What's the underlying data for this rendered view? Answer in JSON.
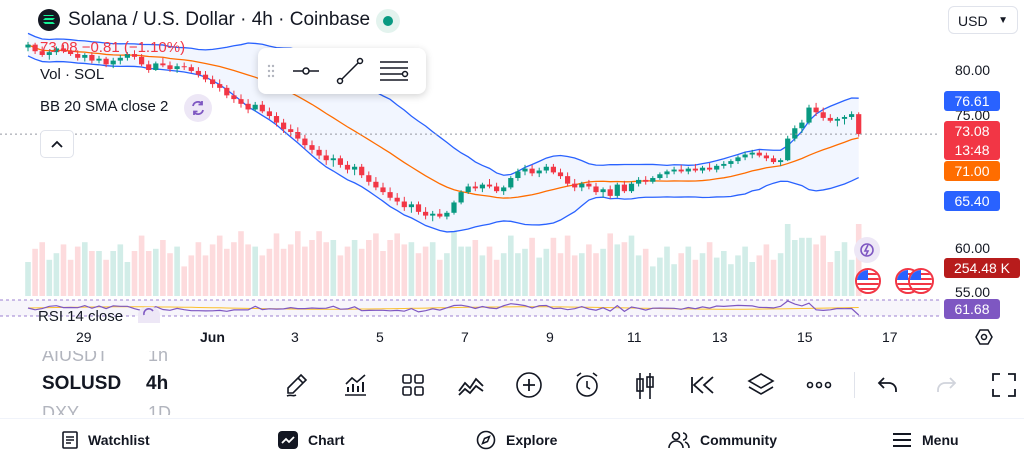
{
  "header": {
    "title": "Solana / U.S. Dollar · 4h · Coinbase",
    "currency": "USD",
    "price_change": "73.08  −0.81 (−1.10%)"
  },
  "indicators": {
    "volume": "Vol · SOL",
    "bollinger": "BB 20 SMA close 2",
    "rsi": "RSI 14 close"
  },
  "price_axis": {
    "ticks": [
      "80.00",
      "75.00",
      "60.00",
      "55.00"
    ],
    "tags": {
      "bb_upper": {
        "value": "76.61",
        "color": "#2962ff"
      },
      "last": {
        "value": "73.08",
        "color": "#f23645"
      },
      "countdown": {
        "value": "13:48",
        "color": "#f23645"
      },
      "bb_basis": {
        "value": "71.00",
        "color": "#ff6d00"
      },
      "bb_lower": {
        "value": "65.40",
        "color": "#2962ff"
      },
      "volume": {
        "value": "254.48 K",
        "color": "#b71c1c"
      },
      "rsi": {
        "value": "61.68",
        "color": "#7e57c2"
      }
    }
  },
  "time_axis": [
    "29",
    "Jun",
    "3",
    "5",
    "7",
    "9",
    "11",
    "13",
    "15",
    "17"
  ],
  "symbols": {
    "above": "AIUSDT",
    "above_interval": "1h",
    "current": "SOLUSD",
    "current_interval": "4h",
    "below": "DXY",
    "below_interval": "1D"
  },
  "toolbar_icons": [
    "pencil-icon",
    "indicators-icon",
    "templates-icon",
    "compare-icon",
    "add-icon",
    "alert-icon",
    "candle-style-icon",
    "replay-icon",
    "layers-icon",
    "more-icon",
    "undo-icon",
    "redo-icon",
    "fullscreen-icon"
  ],
  "nav": {
    "watchlist": "Watchlist",
    "chart": "Chart",
    "explore": "Explore",
    "community": "Community",
    "menu": "Menu"
  },
  "colors": {
    "up": "#089981",
    "down": "#f23645",
    "bb_band": "#2962ff",
    "bb_basis": "#ff6d00",
    "rsi": "#7e57c2"
  },
  "chart_data": {
    "type": "candlestick",
    "x": [
      "May 28 04:00",
      "May 28 08:00",
      "May 28 12:00",
      "May 28 16:00",
      "May 28 20:00",
      "May 29 00:00",
      "May 29 04:00",
      "May 29 08:00",
      "May 29 12:00",
      "May 29 16:00",
      "May 29 20:00",
      "May 30 00:00",
      "May 30 04:00",
      "May 30 08:00",
      "May 30 12:00",
      "May 30 16:00",
      "May 30 20:00",
      "May 31 00:00",
      "May 31 04:00",
      "May 31 08:00",
      "May 31 12:00",
      "May 31 16:00",
      "May 31 20:00",
      "Jun 1 00:00",
      "Jun 1 04:00",
      "Jun 1 08:00",
      "Jun 1 12:00",
      "Jun 1 16:00",
      "Jun 1 20:00",
      "Jun 2 00:00",
      "Jun 2 04:00",
      "Jun 2 08:00",
      "Jun 2 12:00",
      "Jun 2 16:00",
      "Jun 2 20:00",
      "Jun 3 00:00",
      "Jun 3 04:00",
      "Jun 3 08:00",
      "Jun 3 12:00",
      "Jun 3 16:00",
      "Jun 3 20:00",
      "Jun 4 00:00",
      "Jun 4 04:00",
      "Jun 4 08:00",
      "Jun 4 12:00",
      "Jun 4 16:00",
      "Jun 4 20:00",
      "Jun 5 00:00",
      "Jun 5 04:00",
      "Jun 5 08:00",
      "Jun 5 12:00",
      "Jun 5 16:00",
      "Jun 5 20:00",
      "Jun 6 00:00",
      "Jun 6 04:00",
      "Jun 6 08:00",
      "Jun 6 12:00",
      "Jun 6 16:00",
      "Jun 6 20:00",
      "Jun 7 00:00",
      "Jun 7 04:00",
      "Jun 7 08:00",
      "Jun 7 12:00",
      "Jun 7 16:00",
      "Jun 7 20:00",
      "Jun 8 00:00",
      "Jun 8 04:00",
      "Jun 8 08:00",
      "Jun 8 12:00",
      "Jun 8 16:00",
      "Jun 8 20:00",
      "Jun 9 00:00",
      "Jun 9 04:00",
      "Jun 9 08:00",
      "Jun 9 12:00",
      "Jun 9 16:00",
      "Jun 9 20:00",
      "Jun 10 00:00",
      "Jun 10 04:00",
      "Jun 10 08:00",
      "Jun 10 12:00",
      "Jun 10 16:00",
      "Jun 10 20:00",
      "Jun 11 00:00",
      "Jun 11 04:00",
      "Jun 11 08:00",
      "Jun 11 12:00",
      "Jun 11 16:00",
      "Jun 11 20:00",
      "Jun 12 00:00",
      "Jun 12 04:00",
      "Jun 12 08:00",
      "Jun 12 12:00",
      "Jun 12 16:00",
      "Jun 12 20:00",
      "Jun 13 00:00",
      "Jun 13 04:00",
      "Jun 13 08:00",
      "Jun 13 12:00",
      "Jun 13 16:00",
      "Jun 13 20:00",
      "Jun 14 00:00",
      "Jun 14 04:00",
      "Jun 14 08:00",
      "Jun 14 12:00",
      "Jun 14 16:00",
      "Jun 14 20:00",
      "Jun 15 00:00",
      "Jun 15 04:00",
      "Jun 15 08:00",
      "Jun 15 12:00",
      "Jun 15 16:00",
      "Jun 15 20:00",
      "Jun 16 00:00",
      "Jun 16 04:00",
      "Jun 16 08:00",
      "Jun 16 12:00",
      "Jun 16 16:00",
      "Jun 16 20:00",
      "Jun 17 00:00"
    ],
    "ohlc": [
      [
        82.3,
        82.9,
        81.9,
        82.6
      ],
      [
        82.6,
        82.8,
        81.6,
        81.9
      ],
      [
        81.9,
        82.4,
        81.3,
        81.5
      ],
      [
        81.5,
        82.0,
        81.0,
        81.8
      ],
      [
        81.8,
        82.4,
        81.5,
        82.2
      ],
      [
        82.2,
        82.6,
        81.7,
        81.9
      ],
      [
        81.9,
        82.3,
        81.4,
        81.6
      ],
      [
        81.6,
        82.0,
        80.9,
        81.2
      ],
      [
        81.2,
        81.7,
        80.8,
        81.5
      ],
      [
        81.5,
        81.8,
        80.6,
        80.9
      ],
      [
        80.9,
        81.4,
        80.6,
        81.1
      ],
      [
        81.1,
        81.3,
        80.2,
        80.5
      ],
      [
        80.5,
        81.2,
        80.1,
        80.9
      ],
      [
        80.9,
        81.5,
        80.5,
        81.2
      ],
      [
        81.2,
        81.8,
        80.9,
        81.6
      ],
      [
        81.6,
        82.0,
        81.0,
        81.3
      ],
      [
        81.3,
        81.6,
        80.3,
        80.5
      ],
      [
        80.5,
        80.9,
        79.6,
        79.9
      ],
      [
        79.9,
        80.8,
        79.8,
        80.6
      ],
      [
        80.6,
        81.2,
        80.2,
        80.4
      ],
      [
        80.4,
        80.8,
        79.7,
        80.0
      ],
      [
        80.0,
        80.6,
        79.6,
        80.3
      ],
      [
        80.3,
        80.7,
        79.9,
        80.2
      ],
      [
        80.2,
        80.5,
        79.6,
        79.8
      ],
      [
        79.8,
        80.2,
        79.1,
        79.4
      ],
      [
        79.4,
        79.8,
        78.6,
        78.9
      ],
      [
        78.9,
        79.3,
        78.0,
        78.4
      ],
      [
        78.4,
        78.9,
        77.6,
        78.0
      ],
      [
        78.0,
        78.3,
        76.9,
        77.2
      ],
      [
        77.2,
        77.7,
        76.4,
        76.8
      ],
      [
        76.8,
        77.3,
        75.9,
        76.3
      ],
      [
        76.3,
        76.8,
        75.3,
        75.7
      ],
      [
        75.7,
        76.5,
        75.5,
        76.2
      ],
      [
        76.2,
        76.6,
        75.3,
        75.5
      ],
      [
        75.5,
        75.9,
        74.7,
        75.0
      ],
      [
        75.0,
        75.4,
        73.9,
        74.3
      ],
      [
        74.3,
        74.7,
        73.2,
        73.6
      ],
      [
        73.6,
        74.1,
        72.8,
        73.3
      ],
      [
        73.3,
        73.8,
        72.3,
        72.6
      ],
      [
        72.6,
        73.0,
        71.5,
        71.9
      ],
      [
        71.9,
        72.4,
        71.0,
        71.4
      ],
      [
        71.4,
        71.8,
        70.4,
        70.8
      ],
      [
        70.8,
        71.4,
        69.8,
        70.3
      ],
      [
        70.3,
        70.9,
        69.6,
        70.5
      ],
      [
        70.5,
        70.8,
        69.5,
        69.8
      ],
      [
        69.8,
        70.2,
        68.9,
        69.3
      ],
      [
        69.3,
        69.9,
        68.7,
        69.6
      ],
      [
        69.6,
        69.9,
        68.4,
        68.7
      ],
      [
        68.7,
        69.1,
        67.6,
        68.0
      ],
      [
        68.0,
        68.5,
        67.1,
        67.4
      ],
      [
        67.4,
        67.9,
        66.6,
        66.9
      ],
      [
        66.9,
        67.4,
        66.0,
        66.3
      ],
      [
        66.3,
        66.8,
        65.5,
        65.9
      ],
      [
        65.9,
        66.4,
        64.9,
        65.3
      ],
      [
        65.3,
        65.9,
        64.7,
        65.6
      ],
      [
        65.6,
        65.9,
        64.5,
        64.8
      ],
      [
        64.8,
        65.3,
        64.0,
        64.4
      ],
      [
        64.4,
        64.9,
        63.8,
        64.6
      ],
      [
        64.6,
        65.1,
        64.1,
        64.3
      ],
      [
        64.3,
        64.9,
        64.0,
        64.7
      ],
      [
        64.7,
        66.0,
        64.5,
        65.8
      ],
      [
        65.8,
        67.1,
        65.6,
        66.9
      ],
      [
        66.9,
        67.8,
        66.7,
        67.5
      ],
      [
        67.5,
        68.0,
        67.0,
        67.3
      ],
      [
        67.3,
        67.9,
        66.9,
        67.7
      ],
      [
        67.7,
        68.3,
        67.3,
        67.5
      ],
      [
        67.5,
        67.9,
        66.8,
        67.0
      ],
      [
        67.0,
        67.6,
        66.6,
        67.4
      ],
      [
        67.4,
        68.6,
        67.2,
        68.4
      ],
      [
        68.4,
        69.4,
        68.1,
        69.1
      ],
      [
        69.1,
        69.8,
        68.7,
        69.4
      ],
      [
        69.4,
        69.8,
        68.6,
        68.9
      ],
      [
        68.9,
        69.5,
        68.5,
        69.2
      ],
      [
        69.2,
        69.9,
        68.9,
        69.6
      ],
      [
        69.6,
        69.9,
        68.8,
        69.0
      ],
      [
        69.0,
        69.4,
        68.3,
        68.6
      ],
      [
        68.6,
        69.0,
        67.5,
        67.8
      ],
      [
        67.8,
        68.3,
        67.0,
        67.4
      ],
      [
        67.4,
        68.0,
        67.0,
        67.8
      ],
      [
        67.8,
        68.2,
        67.2,
        67.5
      ],
      [
        67.5,
        67.9,
        66.6,
        66.9
      ],
      [
        66.9,
        67.4,
        66.3,
        67.2
      ],
      [
        67.2,
        67.6,
        66.2,
        66.5
      ],
      [
        66.5,
        67.9,
        66.3,
        67.7
      ],
      [
        67.7,
        68.1,
        66.8,
        67.0
      ],
      [
        67.0,
        68.0,
        66.8,
        67.8
      ],
      [
        67.8,
        68.5,
        67.5,
        68.2
      ],
      [
        68.2,
        68.6,
        67.7,
        68.0
      ],
      [
        68.0,
        68.6,
        67.8,
        68.4
      ],
      [
        68.4,
        69.0,
        68.2,
        68.8
      ],
      [
        68.8,
        69.3,
        68.4,
        69.1
      ],
      [
        69.1,
        69.6,
        68.8,
        69.3
      ],
      [
        69.3,
        69.8,
        68.9,
        69.1
      ],
      [
        69.1,
        69.6,
        68.8,
        69.4
      ],
      [
        69.4,
        69.9,
        69.0,
        69.2
      ],
      [
        69.2,
        69.7,
        68.9,
        69.5
      ],
      [
        69.5,
        70.0,
        69.1,
        69.3
      ],
      [
        69.3,
        69.9,
        69.0,
        69.7
      ],
      [
        69.7,
        70.2,
        69.4,
        69.9
      ],
      [
        69.9,
        70.4,
        69.5,
        70.2
      ],
      [
        70.2,
        70.8,
        69.9,
        70.6
      ],
      [
        70.6,
        71.2,
        70.3,
        70.9
      ],
      [
        70.9,
        71.4,
        70.5,
        71.1
      ],
      [
        71.1,
        71.4,
        70.6,
        70.8
      ],
      [
        70.8,
        71.1,
        70.2,
        70.5
      ],
      [
        70.5,
        70.8,
        69.9,
        70.1
      ],
      [
        70.1,
        70.5,
        69.7,
        70.3
      ],
      [
        70.3,
        72.9,
        70.2,
        72.6
      ],
      [
        72.6,
        74.0,
        72.3,
        73.7
      ],
      [
        73.7,
        74.6,
        73.2,
        74.3
      ],
      [
        74.3,
        76.2,
        74.1,
        75.9
      ],
      [
        75.9,
        76.4,
        75.0,
        75.4
      ],
      [
        75.4,
        75.9,
        74.5,
        74.8
      ],
      [
        74.8,
        75.2,
        74.3,
        74.5
      ],
      [
        74.5,
        74.9,
        73.9,
        74.7
      ],
      [
        74.7,
        75.1,
        74.1,
        74.9
      ],
      [
        74.9,
        75.5,
        74.6,
        75.2
      ],
      [
        75.2,
        75.4,
        72.8,
        73.08
      ]
    ],
    "bb_upper_last": 76.61,
    "bb_basis_last": 71.0,
    "bb_lower_last": 65.4,
    "volume_last": "254.48 K",
    "rsi_last": 61.68,
    "ylim": [
      53.5,
      86.5
    ]
  }
}
